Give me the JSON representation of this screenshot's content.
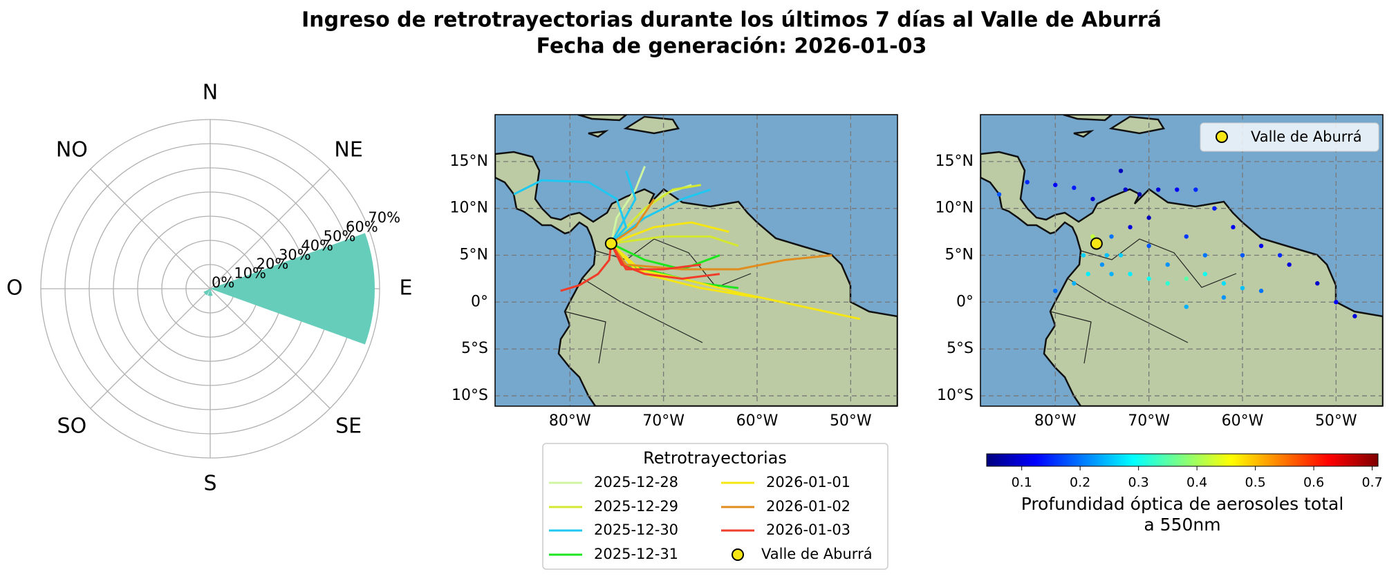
{
  "figure": {
    "title": "Ingreso de retrotrayectorias durante los últimos 7 días al Valle de Aburrá",
    "subtitle": "Fecha de generación: 2026-01-03"
  },
  "chart_data": [
    {
      "type": "polar_bar",
      "color": "#66cdbb",
      "categories": [
        "N",
        "NE",
        "E",
        "SE",
        "S",
        "SO",
        "O",
        "NO"
      ],
      "values": [
        0,
        0,
        68,
        0,
        3,
        3,
        0,
        0
      ],
      "rlim": [
        0,
        70
      ],
      "rticks": [
        {
          "value": 0,
          "label": "0%"
        },
        {
          "value": 10,
          "label": "10%"
        },
        {
          "value": 20,
          "label": "20%"
        },
        {
          "value": 30,
          "label": "30%"
        },
        {
          "value": 40,
          "label": "40%"
        },
        {
          "value": 50,
          "label": "50%"
        },
        {
          "value": 60,
          "label": "60%"
        },
        {
          "value": 70,
          "label": "70%"
        }
      ]
    },
    {
      "type": "line",
      "grid": true,
      "legend_title": "Retrotrayectorias",
      "xlim": [
        -88,
        -45
      ],
      "ylim": [
        -11.1,
        20
      ],
      "xticks": [
        {
          "value": -80,
          "label": "80°W"
        },
        {
          "value": -70,
          "label": "70°W"
        },
        {
          "value": -60,
          "label": "60°W"
        },
        {
          "value": -50,
          "label": "50°W"
        }
      ],
      "yticks": [
        {
          "value": 15,
          "label": "15°N"
        },
        {
          "value": 10,
          "label": "10°N"
        },
        {
          "value": 5,
          "label": "5°N"
        },
        {
          "value": 0,
          "label": "0°"
        },
        {
          "value": -5,
          "label": "5°S"
        },
        {
          "value": -10,
          "label": "10°S"
        }
      ],
      "series": [
        {
          "name": "2025-12-28",
          "color": "#cff5a3",
          "x": [
            -72,
            -73,
            -75,
            -75.6,
            null,
            -67,
            -70,
            -73,
            -75.6
          ],
          "values": [
            14.5,
            12,
            9,
            6.25,
            null,
            12.5,
            11.5,
            9,
            6.25
          ]
        },
        {
          "name": "2025-12-29",
          "color": "#d4e830",
          "x": [
            -66,
            -69,
            -72,
            -75.6,
            null,
            -62,
            -65,
            -70,
            -75.6
          ],
          "values": [
            12.5,
            12,
            10,
            6.25,
            null,
            6,
            7,
            7,
            6.25
          ]
        },
        {
          "name": "2025-12-30",
          "color": "#1ec8f0",
          "x": [
            -86,
            -83,
            -78,
            -75,
            -74,
            -75.6,
            null,
            -65,
            -68,
            -72,
            -75.6,
            null,
            -74,
            -73,
            -75.6
          ],
          "values": [
            11.5,
            13,
            12.8,
            11,
            8,
            6.25,
            null,
            12,
            11,
            9,
            6.25,
            null,
            14,
            11,
            6.25
          ]
        },
        {
          "name": "2025-12-31",
          "color": "#1ee61e",
          "x": [
            -62,
            -66,
            -70,
            -74,
            -75.6,
            null,
            -64,
            -68,
            -72,
            -75.6
          ],
          "values": [
            1.5,
            2,
            3,
            4,
            6.25,
            null,
            5,
            3.5,
            4.5,
            6.25
          ]
        },
        {
          "name": "2026-01-01",
          "color": "#f5e614",
          "x": [
            -49,
            -55,
            -62,
            -68,
            -73,
            -75.6,
            null,
            -63,
            -67,
            -71,
            -75.6,
            null,
            -60,
            -66,
            -72,
            -75.6
          ],
          "values": [
            -1.8,
            -0.5,
            1,
            2.5,
            3.5,
            6.25,
            null,
            7.5,
            8.5,
            8,
            6.25,
            null,
            0.5,
            1.5,
            3,
            6.25
          ]
        },
        {
          "name": "2026-01-02",
          "color": "#e08c1e",
          "x": [
            -52,
            -57,
            -62,
            -68,
            -74,
            -75.6,
            null,
            -71,
            -73,
            -75.6
          ],
          "values": [
            5,
            4.5,
            3.5,
            3.5,
            4,
            6.25,
            null,
            11,
            8,
            6.25
          ]
        },
        {
          "name": "2026-01-03",
          "color": "#f03c28",
          "x": [
            -81,
            -79,
            -77,
            -75.8,
            -75.6,
            null,
            -64,
            -68,
            -72,
            -74.5,
            -75.6,
            null,
            -66,
            -70,
            -74,
            -75.6
          ],
          "values": [
            1.2,
            1.8,
            3,
            4.5,
            6.25,
            null,
            3,
            2.5,
            3,
            4,
            6.25,
            null,
            4,
            3.5,
            3.5,
            6.25
          ]
        }
      ],
      "marker": {
        "name": "Valle de Aburrá",
        "x": -75.6,
        "y": 6.25,
        "color": "#f5e614"
      }
    },
    {
      "type": "scatter",
      "grid": true,
      "colormap": "jet",
      "legend": "upper right",
      "xlim": [
        -88,
        -45
      ],
      "ylim": [
        -11.1,
        20
      ],
      "xticks": [
        {
          "value": -80,
          "label": "80°W"
        },
        {
          "value": -70,
          "label": "70°W"
        },
        {
          "value": -60,
          "label": "60°W"
        },
        {
          "value": -50,
          "label": "50°W"
        }
      ],
      "yticks": [
        {
          "value": 15,
          "label": "15°N"
        },
        {
          "value": 10,
          "label": "10°N"
        },
        {
          "value": 5,
          "label": "5°N"
        },
        {
          "value": 0,
          "label": "0°"
        },
        {
          "value": -5,
          "label": "5°S"
        },
        {
          "value": -10,
          "label": "10°S"
        }
      ],
      "x": [
        -86,
        -83,
        -80,
        -78,
        -76,
        -73,
        -72.5,
        -71,
        -69,
        -67,
        -65,
        -63,
        -61,
        -58,
        -55,
        -52,
        -50,
        -48,
        -70,
        -72,
        -74,
        -74.5,
        -75,
        -74,
        -72,
        -70,
        -68,
        -66,
        -64,
        -62,
        -60,
        -58,
        -80,
        -78,
        -76.5,
        -77,
        -76,
        -73,
        -68,
        -64,
        -60,
        -56,
        -66,
        -70,
        -62,
        -66
      ],
      "values": [
        11.5,
        12.8,
        12.5,
        12.2,
        11,
        14,
        12,
        11.5,
        12,
        12,
        12,
        10,
        8,
        6,
        4,
        2,
        0,
        -1.5,
        9,
        8,
        7,
        5,
        4,
        3,
        3,
        2.5,
        2,
        2.5,
        3,
        2,
        1.5,
        1.2,
        1.2,
        2,
        3,
        5,
        7,
        5,
        4,
        5,
        5,
        5,
        7,
        6,
        0.5,
        -0.5
      ],
      "color_values": [
        0.18,
        0.15,
        0.12,
        0.14,
        0.1,
        0.08,
        0.09,
        0.07,
        0.1,
        0.12,
        0.15,
        0.14,
        0.12,
        0.11,
        0.1,
        0.09,
        0.12,
        0.1,
        0.08,
        0.1,
        0.2,
        0.25,
        0.22,
        0.24,
        0.28,
        0.3,
        0.32,
        0.35,
        0.3,
        0.27,
        0.25,
        0.2,
        0.2,
        0.24,
        0.28,
        0.26,
        0.42,
        0.26,
        0.22,
        0.2,
        0.18,
        0.15,
        0.16,
        0.18,
        0.22,
        0.24
      ],
      "clim": [
        0.04,
        0.71
      ],
      "cticks": [
        0.1,
        0.2,
        0.3,
        0.4,
        0.5,
        0.6,
        0.7
      ],
      "colorbar_label": [
        "Profundidad óptica de aerosoles total",
        "a 550nm"
      ],
      "marker": {
        "name": "Valle de Aburrá",
        "x": -75.6,
        "y": 6.25,
        "color": "#f5e614"
      }
    }
  ]
}
